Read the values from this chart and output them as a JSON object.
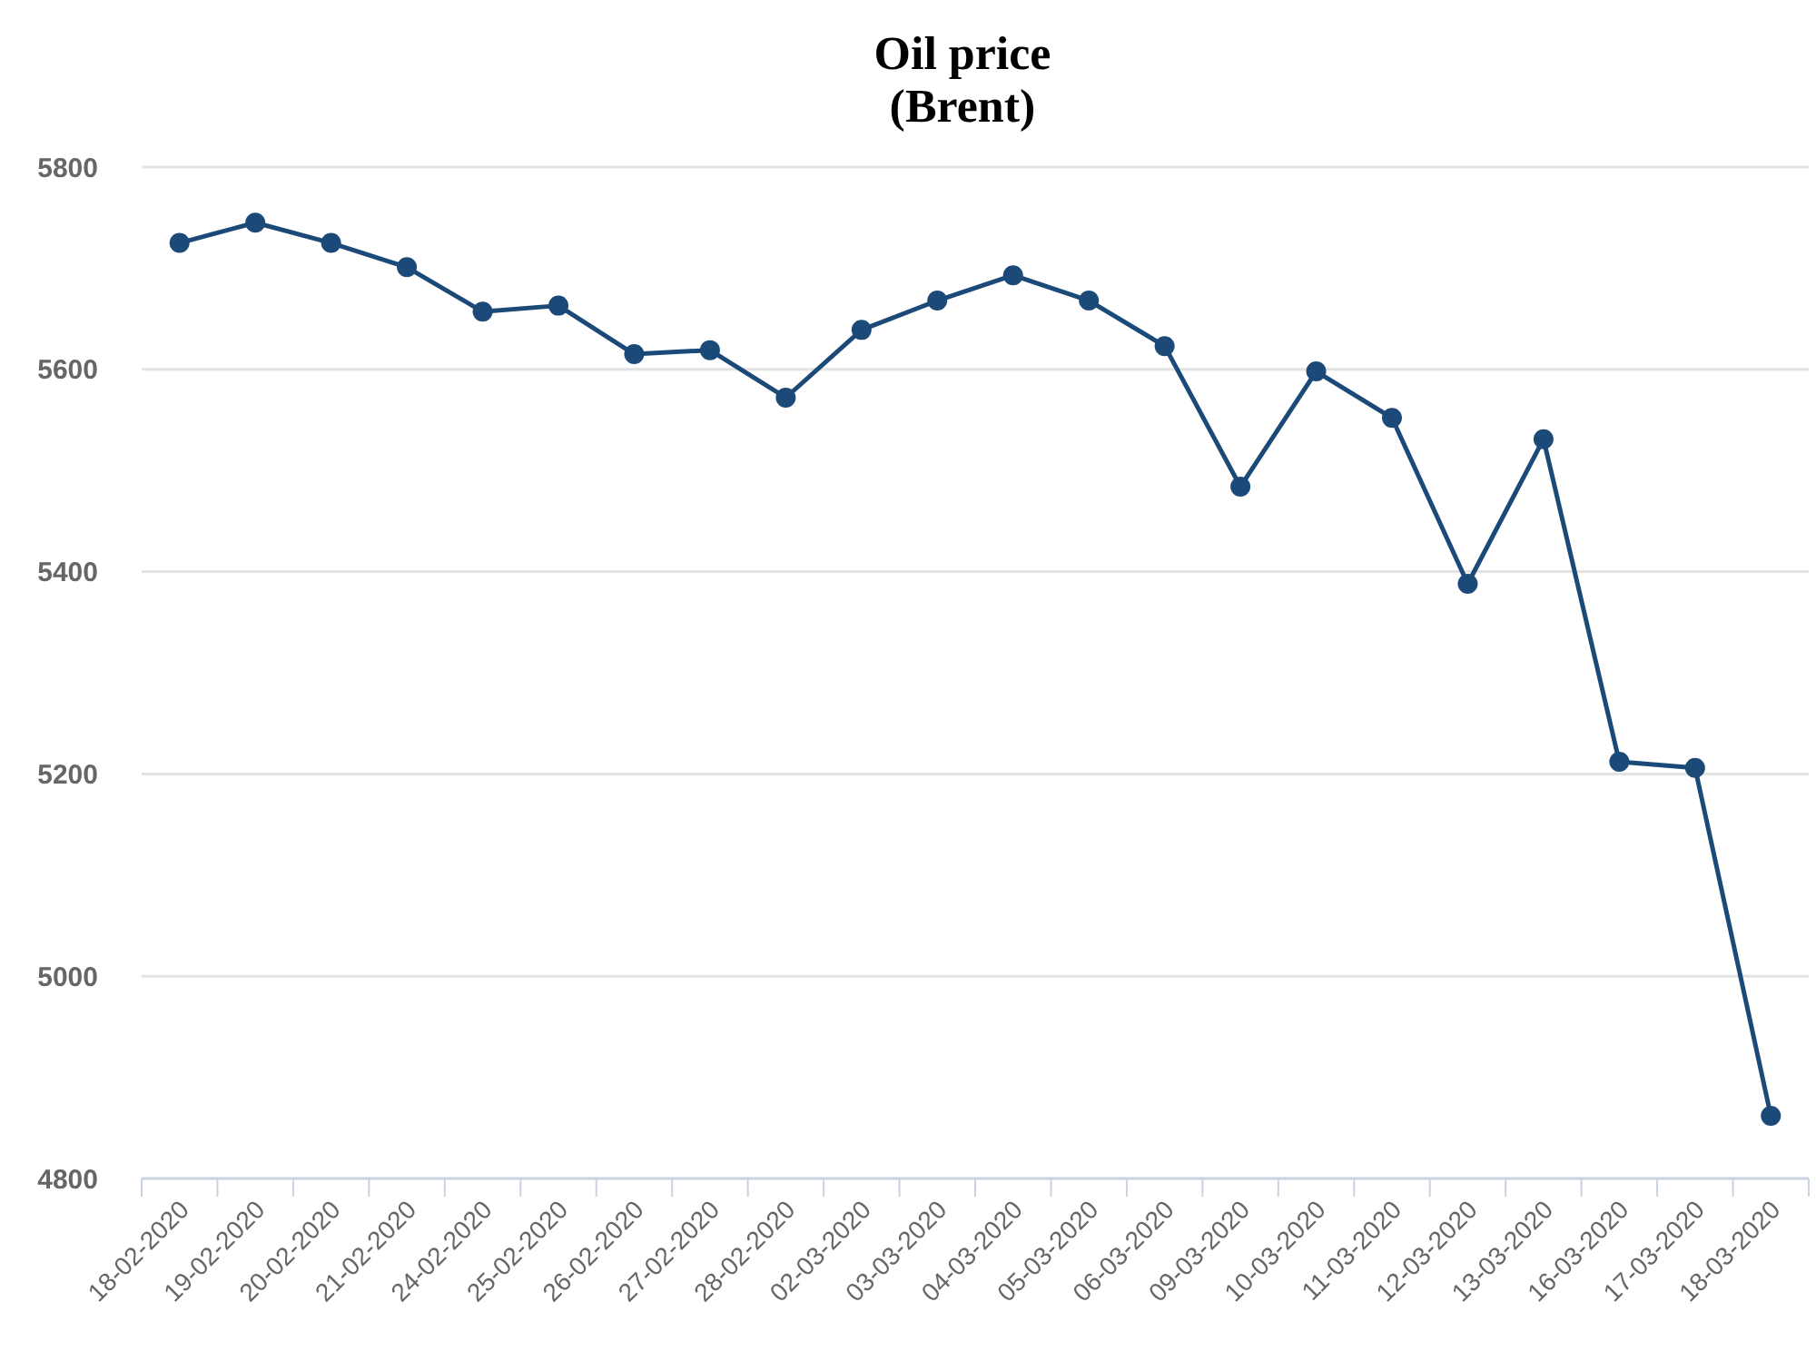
{
  "chart_data": {
    "type": "line",
    "title": "Oil price\n(Brent)",
    "categories": [
      "18-02-2020",
      "19-02-2020",
      "20-02-2020",
      "21-02-2020",
      "24-02-2020",
      "25-02-2020",
      "26-02-2020",
      "27-02-2020",
      "28-02-2020",
      "02-03-2020",
      "03-03-2020",
      "04-03-2020",
      "05-03-2020",
      "06-03-2020",
      "09-03-2020",
      "10-03-2020",
      "11-03-2020",
      "12-03-2020",
      "13-03-2020",
      "16-03-2020",
      "17-03-2020",
      "18-03-2020"
    ],
    "series": [
      {
        "color": "#1c4a78",
        "values": [
          5725,
          5745,
          5725,
          5701,
          5657,
          5663,
          5615,
          5619,
          5572,
          5639,
          5668,
          5693,
          5668,
          5623,
          5484,
          5598,
          5552,
          5388,
          5531,
          5212,
          5206,
          4862
        ]
      }
    ],
    "ylim": [
      4800,
      5800
    ],
    "yticks": [
      4800,
      5000,
      5200,
      5400,
      5600,
      5800
    ],
    "grid": "y",
    "marker": "circle"
  }
}
